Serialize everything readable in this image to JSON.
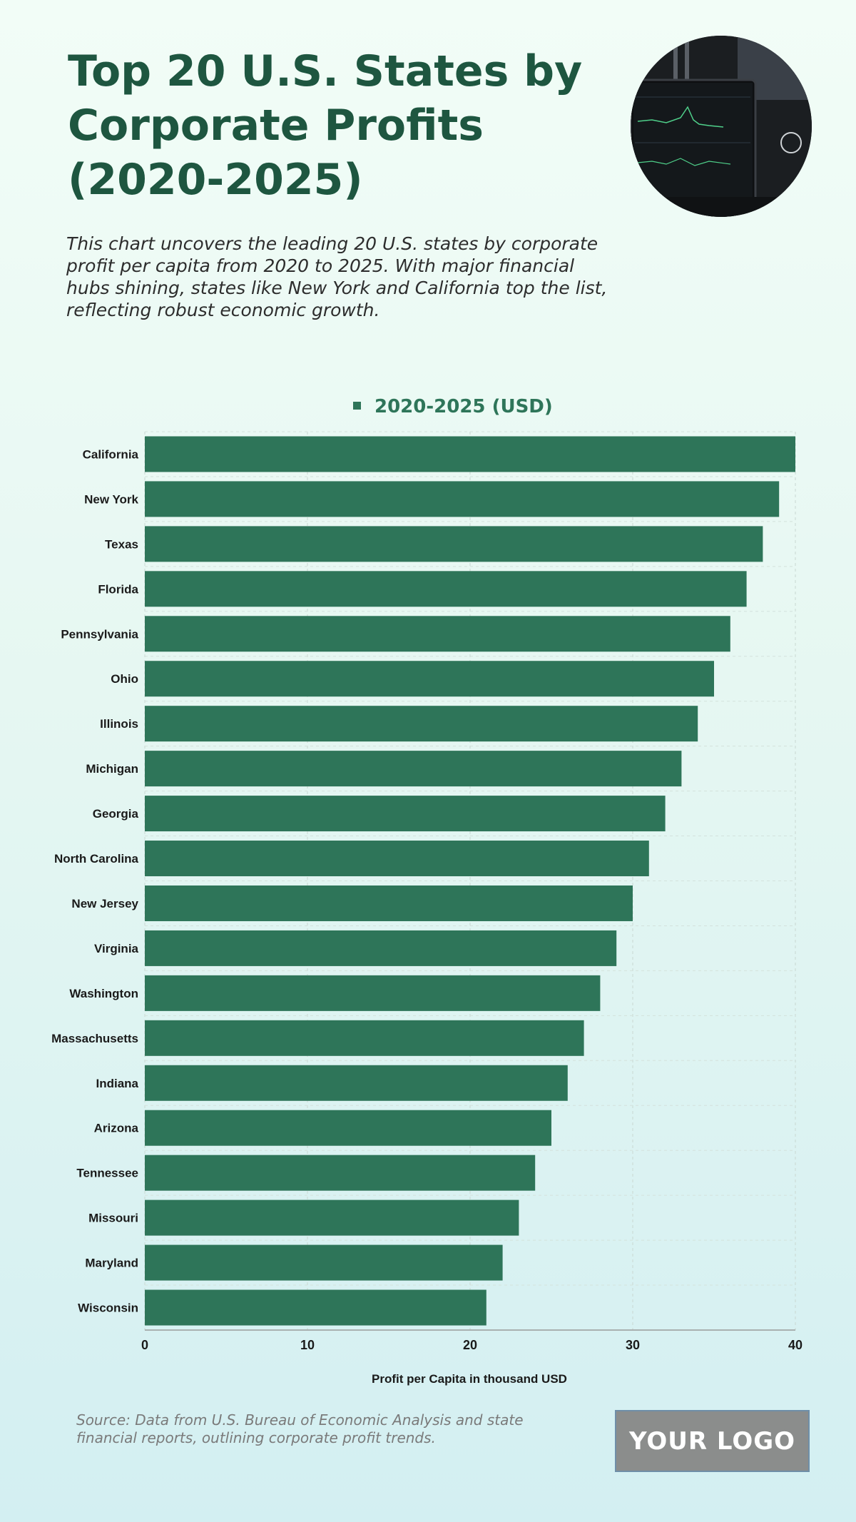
{
  "header": {
    "title": "Top 20 U.S. States by Corporate Profits (2020-2025)",
    "subtitle": "This chart uncovers the leading 20 U.S. states by corporate profit per capita from 2020 to 2025. With major financial hubs shining, states like New York and California top the list, reflecting robust economic growth."
  },
  "footer": {
    "source": "Source: Data from U.S. Bureau of Economic Analysis and state financial reports, outlining corporate profit trends.",
    "logo_text": "YOUR LOGO"
  },
  "colors": {
    "bar": "#2e7559",
    "title": "#1e5640",
    "legend_text": "#2e7559"
  },
  "chart_data": {
    "type": "bar",
    "orientation": "horizontal",
    "categories": [
      "California",
      "New York",
      "Texas",
      "Florida",
      "Pennsylvania",
      "Ohio",
      "Illinois",
      "Michigan",
      "Georgia",
      "North Carolina",
      "New Jersey",
      "Virginia",
      "Washington",
      "Massachusetts",
      "Indiana",
      "Arizona",
      "Tennessee",
      "Missouri",
      "Maryland",
      "Wisconsin"
    ],
    "series": [
      {
        "name": "2020-2025 (USD)",
        "values": [
          40,
          39,
          38,
          37,
          36,
          35,
          34,
          33,
          32,
          31,
          30,
          29,
          28,
          27,
          26,
          25,
          24,
          23,
          22,
          21
        ]
      }
    ],
    "xlabel": "Profit per Capita in thousand USD",
    "ylabel": "",
    "xlim": [
      0,
      40
    ],
    "xticks": [
      0,
      10,
      20,
      30,
      40
    ],
    "grid": true,
    "legend_position": "top-center"
  }
}
